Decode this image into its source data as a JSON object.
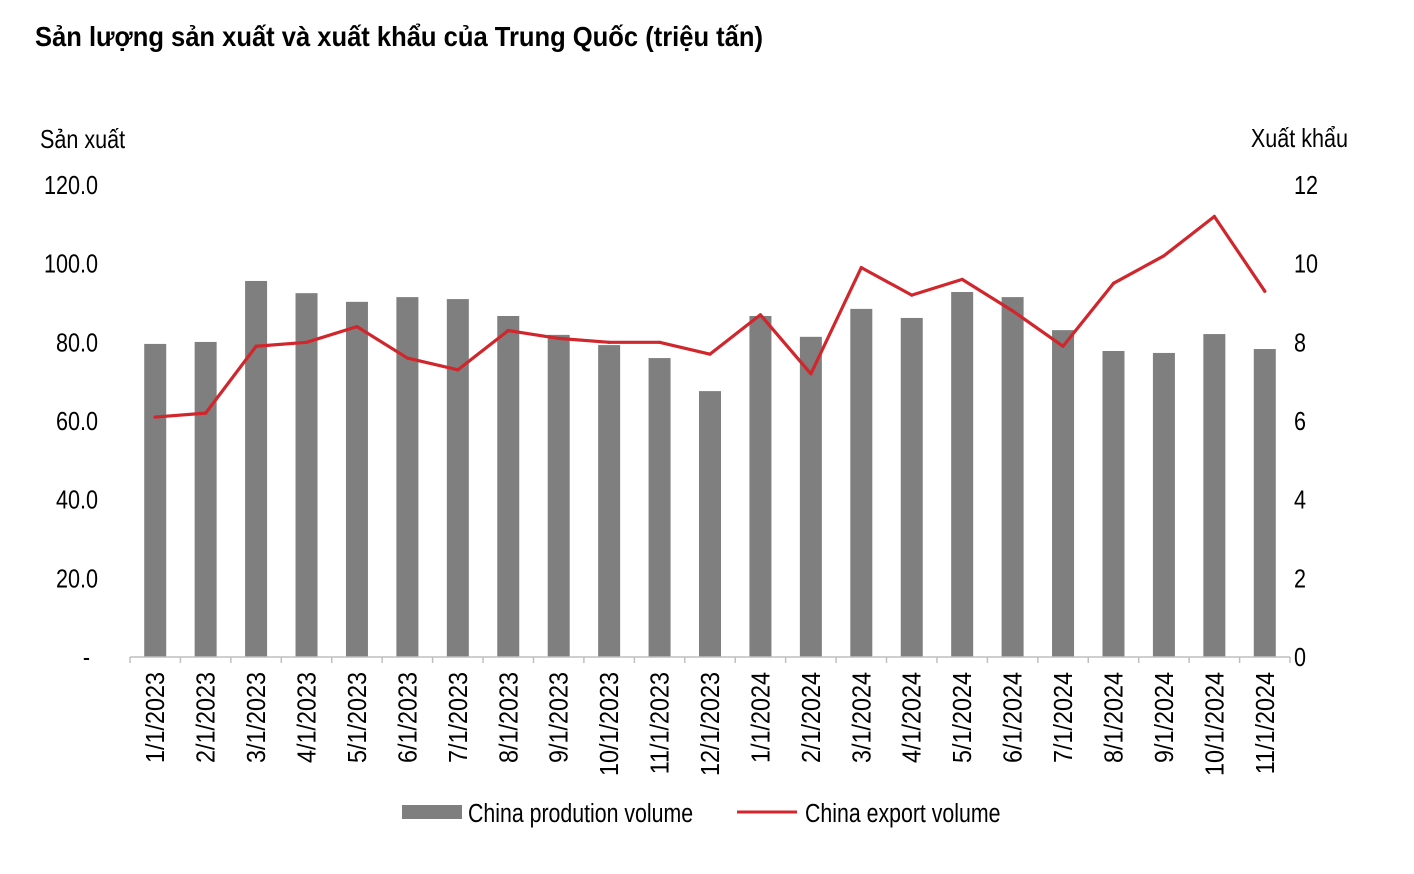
{
  "chart_data": {
    "type": "bar",
    "title": "Sản lượng sản xuất và xuất khẩu của Trung Quốc (triệu tấn)",
    "xlabel": "",
    "ylabel": "Sản xuất",
    "y2label": "Xuất khẩu",
    "ylim": [
      0,
      120
    ],
    "y2lim": [
      0,
      12
    ],
    "yticks": [
      0,
      20,
      40,
      60,
      80,
      100,
      120
    ],
    "ytick_labels": [
      "-",
      "20.0",
      "40.0",
      "60.0",
      "80.0",
      "100.0",
      "120.0"
    ],
    "y2ticks": [
      0,
      2,
      4,
      6,
      8,
      10,
      12
    ],
    "y2tick_labels": [
      "0",
      "2",
      "4",
      "6",
      "8",
      "10",
      "12"
    ],
    "grid": false,
    "legend": "bottom",
    "categories": [
      "1/1/2023",
      "2/1/2023",
      "3/1/2023",
      "4/1/2023",
      "5/1/2023",
      "6/1/2023",
      "7/1/2023",
      "8/1/2023",
      "9/1/2023",
      "10/1/2023",
      "11/1/2023",
      "12/1/2023",
      "1/1/2024",
      "2/1/2024",
      "3/1/2024",
      "4/1/2024",
      "5/1/2024",
      "6/1/2024",
      "7/1/2024",
      "8/1/2024",
      "9/1/2024",
      "10/1/2024",
      "11/1/2024"
    ],
    "series": [
      {
        "name": "China prodution volume",
        "type": "bar",
        "y_axis": 1,
        "color": "#7f7f7f",
        "values": [
          79.6,
          80.1,
          95.6,
          92.5,
          90.3,
          91.5,
          91.0,
          86.7,
          81.9,
          79.3,
          76.0,
          67.6,
          86.7,
          81.4,
          88.5,
          86.2,
          92.8,
          91.5,
          83.1,
          77.8,
          77.3,
          82.1,
          78.3
        ]
      },
      {
        "name": "China export volume",
        "type": "line",
        "y_axis": 2,
        "color": "#d0262c",
        "values": [
          6.1,
          6.2,
          7.9,
          8.0,
          8.4,
          7.6,
          7.3,
          8.3,
          8.1,
          8.0,
          8.0,
          7.7,
          8.7,
          7.2,
          9.9,
          9.2,
          9.6,
          8.8,
          7.9,
          9.5,
          10.2,
          11.2,
          9.3
        ]
      }
    ]
  }
}
